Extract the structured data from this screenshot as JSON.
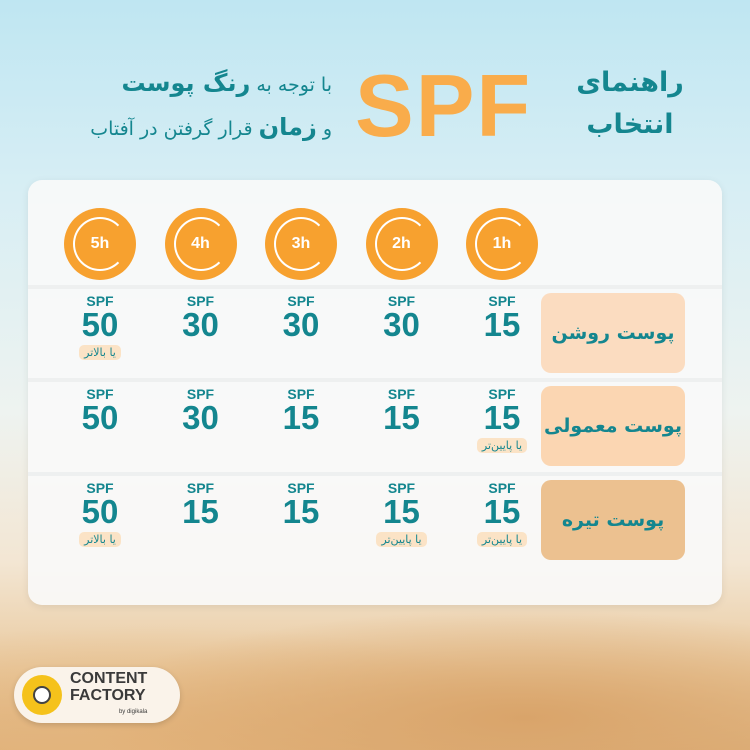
{
  "header": {
    "title_main": "SPF",
    "title_right_1": "راهنمای",
    "title_right_2": "انتخاب",
    "sub_1a": "با توجه به",
    "sub_1b": "رنگ پوست",
    "sub_2a": "و",
    "sub_2b": "زمان",
    "sub_2c": "قرار گرفتن در آفتاب"
  },
  "hours": [
    "1h",
    "2h",
    "3h",
    "4h",
    "5h"
  ],
  "rows": [
    {
      "label": "پوست روشن",
      "color": "#fbdcc0",
      "cells": [
        {
          "spf": "SPF",
          "v": "15",
          "note": ""
        },
        {
          "spf": "SPF",
          "v": "30",
          "note": ""
        },
        {
          "spf": "SPF",
          "v": "30",
          "note": ""
        },
        {
          "spf": "SPF",
          "v": "30",
          "note": ""
        },
        {
          "spf": "SPF",
          "v": "50",
          "note": "یا بالاتر"
        }
      ]
    },
    {
      "label": "پوست معمولی",
      "color": "#fbd6b2",
      "cells": [
        {
          "spf": "SPF",
          "v": "15",
          "note": "یا پایین‌تر"
        },
        {
          "spf": "SPF",
          "v": "15",
          "note": ""
        },
        {
          "spf": "SPF",
          "v": "15",
          "note": ""
        },
        {
          "spf": "SPF",
          "v": "30",
          "note": ""
        },
        {
          "spf": "SPF",
          "v": "50",
          "note": ""
        }
      ]
    },
    {
      "label": "پوست تیره",
      "color": "#ecc190",
      "cells": [
        {
          "spf": "SPF",
          "v": "15",
          "note": "یا پایین‌تر"
        },
        {
          "spf": "SPF",
          "v": "15",
          "note": "یا پایین‌تر"
        },
        {
          "spf": "SPF",
          "v": "15",
          "note": ""
        },
        {
          "spf": "SPF",
          "v": "15",
          "note": ""
        },
        {
          "spf": "SPF",
          "v": "50",
          "note": "یا بالاتر"
        }
      ]
    }
  ],
  "logo": {
    "line1": "CONTENT",
    "line2": "FACTORY",
    "by": "by digikala"
  },
  "colors": {
    "teal": "#14868f",
    "orange": "#f9ac4b"
  }
}
